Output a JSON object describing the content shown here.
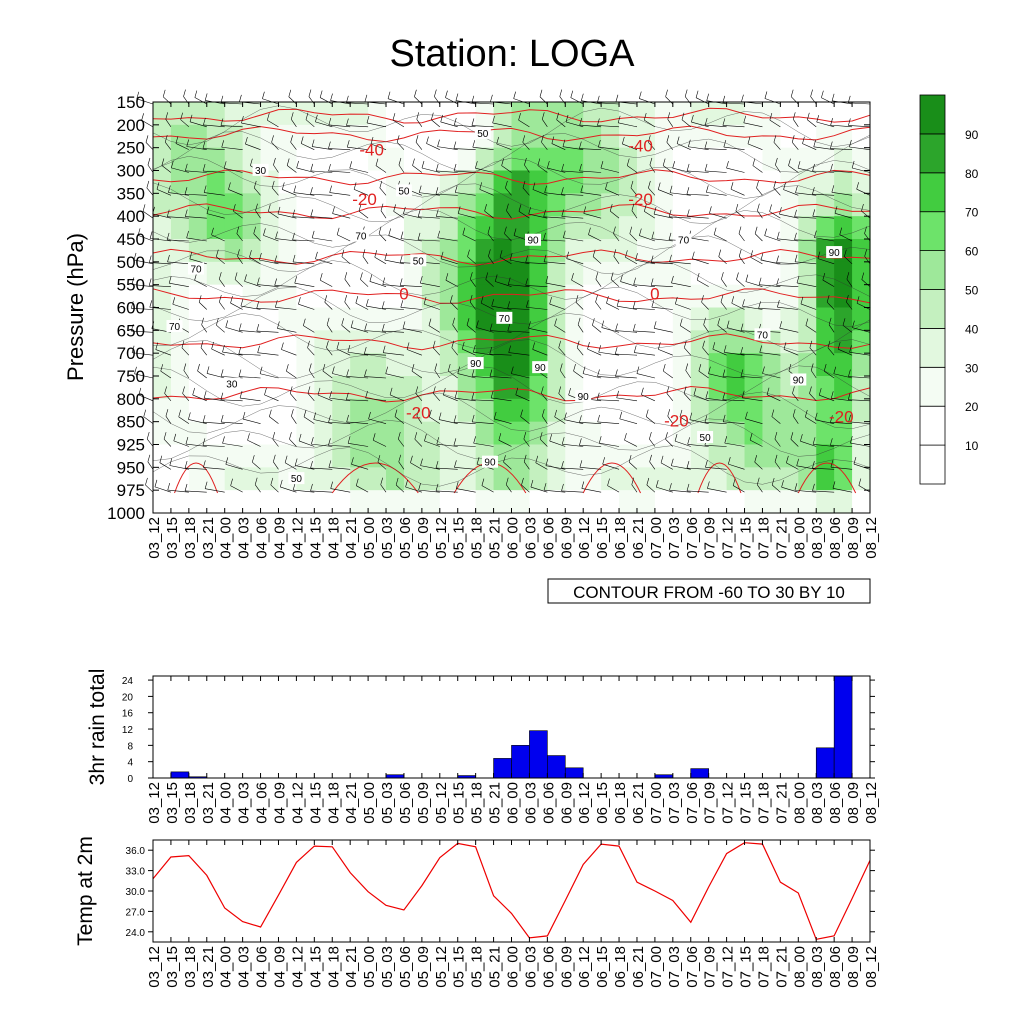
{
  "title": "Station: LOGA",
  "time_labels": [
    "03_12",
    "03_15",
    "03_18",
    "03_21",
    "04_00",
    "04_03",
    "04_06",
    "04_09",
    "04_12",
    "04_15",
    "04_18",
    "04_21",
    "05_00",
    "05_03",
    "05_06",
    "05_09",
    "05_12",
    "05_15",
    "05_18",
    "05_21",
    "06_00",
    "06_03",
    "06_06",
    "06_09",
    "06_12",
    "06_15",
    "06_18",
    "06_21",
    "07_00",
    "07_03",
    "07_06",
    "07_09",
    "07_12",
    "07_15",
    "07_18",
    "07_21",
    "08_00",
    "08_03",
    "08_06",
    "08_09",
    "08_12"
  ],
  "chart_data": [
    {
      "type": "heatmap",
      "ylabel": "Pressure (hPa)",
      "y_ticks": [
        150,
        200,
        250,
        300,
        350,
        400,
        450,
        500,
        550,
        600,
        650,
        700,
        750,
        800,
        850,
        925,
        950,
        975,
        1000
      ],
      "contour_note": "CONTOUR FROM -60 TO 30 BY 10",
      "colorbar": {
        "levels": [
          10,
          20,
          30,
          40,
          50,
          60,
          70,
          80,
          90
        ],
        "colors": [
          "#ffffff",
          "#ffffff",
          "#f4fcf3",
          "#e2f8df",
          "#c4f0bf",
          "#9ee89a",
          "#6de36a",
          "#42cc40",
          "#2ca52b",
          "#198e19"
        ]
      },
      "humidity_labels": [
        "50",
        "30",
        "90",
        "70",
        "50",
        "90",
        "70",
        "90",
        "90",
        "70",
        "90",
        "70",
        "90",
        "90",
        "50",
        "70",
        "50",
        "50",
        "30",
        "70"
      ],
      "temperature_labels": [
        "-40",
        "-20",
        "0",
        "-20",
        "-40",
        "-20",
        "0",
        "-20",
        "-20"
      ],
      "colors": {
        "temperature_contour": "#e02020",
        "wind_barb": "#000000"
      }
    },
    {
      "type": "bar",
      "ylabel": "3hr rain total",
      "y_ticks": [
        0,
        4,
        8,
        12,
        16,
        20,
        24
      ],
      "ylim": [
        0,
        25
      ],
      "values": [
        0,
        1.5,
        0.3,
        0,
        0,
        0,
        0,
        0,
        0,
        0,
        0,
        0,
        0,
        0.8,
        0,
        0,
        0,
        0.6,
        0,
        4.8,
        8.0,
        11.6,
        5.5,
        2.5,
        0,
        0,
        0,
        0,
        0.8,
        0,
        2.3,
        0,
        0,
        0,
        0,
        0,
        0,
        7.4,
        25,
        0,
        0
      ],
      "colors": {
        "bar": "#0000ee"
      }
    },
    {
      "type": "line",
      "ylabel": "Temp at 2m",
      "y_ticks": [
        "24.0",
        "27.0",
        "30.0",
        "33.0",
        "36.0"
      ],
      "ylim": [
        22.5,
        37.5
      ],
      "values": [
        31.8,
        35.0,
        35.2,
        32.3,
        27.5,
        25.5,
        24.7,
        29.4,
        34.2,
        36.6,
        36.5,
        32.7,
        29.9,
        27.9,
        27.2,
        30.8,
        34.9,
        37.0,
        36.5,
        29.3,
        26.7,
        23.1,
        23.4,
        28.6,
        33.9,
        36.9,
        36.6,
        31.3,
        30.0,
        28.6,
        25.4,
        30.6,
        35.5,
        37.1,
        36.9,
        31.3,
        29.7,
        22.9,
        23.4,
        28.9,
        34.5
      ],
      "colors": {
        "line": "#ee0000"
      }
    }
  ]
}
